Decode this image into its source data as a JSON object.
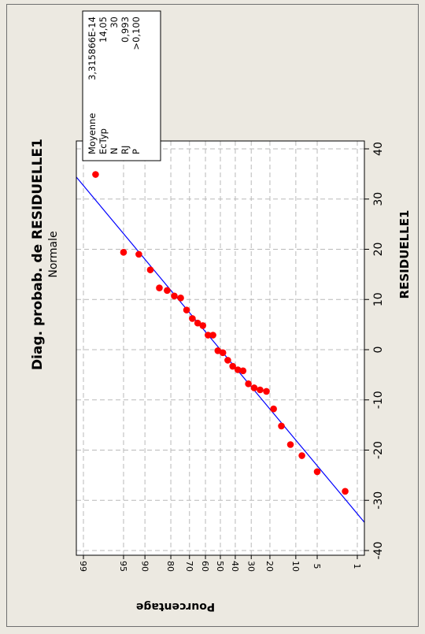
{
  "chart_data": {
    "type": "scatter",
    "title": "Diag. probab. de RESIDUELLE1",
    "subtitle": "Normale",
    "xlabel": "RESIDUELLE1",
    "ylabel": "Pourcentage",
    "x_ticks": [
      "-40",
      "-30",
      "-20",
      "-10",
      "0",
      "10",
      "20",
      "30",
      "40"
    ],
    "xlim": [
      -40,
      40
    ],
    "y_scale": "normal-probability",
    "y_ticks": [
      "1",
      "5",
      "10",
      "20",
      "30",
      "40",
      "50",
      "60",
      "70",
      "80",
      "90",
      "95",
      "99"
    ],
    "ylim": [
      1,
      99
    ],
    "grid": true,
    "fit_line": {
      "mean": 0,
      "stdev": 14.05,
      "color": "#0000ff"
    },
    "point_color": "#ff0000",
    "points": [
      {
        "x": -28.2,
        "y": 1.7
      },
      {
        "x": -24.3,
        "y": 5.0
      },
      {
        "x": -21.1,
        "y": 8.3
      },
      {
        "x": -18.9,
        "y": 11.7
      },
      {
        "x": -15.2,
        "y": 15.0
      },
      {
        "x": -11.8,
        "y": 18.3
      },
      {
        "x": -8.3,
        "y": 21.7
      },
      {
        "x": -8.0,
        "y": 25.0
      },
      {
        "x": -7.6,
        "y": 28.3
      },
      {
        "x": -6.8,
        "y": 31.7
      },
      {
        "x": -4.2,
        "y": 35.0
      },
      {
        "x": -4.0,
        "y": 38.3
      },
      {
        "x": -3.3,
        "y": 41.7
      },
      {
        "x": -2.1,
        "y": 45.0
      },
      {
        "x": -0.6,
        "y": 48.3
      },
      {
        "x": -0.2,
        "y": 51.7
      },
      {
        "x": 2.9,
        "y": 55.0
      },
      {
        "x": 2.9,
        "y": 58.3
      },
      {
        "x": 4.8,
        "y": 61.7
      },
      {
        "x": 5.3,
        "y": 65.0
      },
      {
        "x": 6.2,
        "y": 68.3
      },
      {
        "x": 7.9,
        "y": 71.7
      },
      {
        "x": 10.3,
        "y": 75.0
      },
      {
        "x": 10.7,
        "y": 78.3
      },
      {
        "x": 11.8,
        "y": 81.7
      },
      {
        "x": 12.3,
        "y": 85.0
      },
      {
        "x": 15.9,
        "y": 88.3
      },
      {
        "x": 19.0,
        "y": 91.7
      },
      {
        "x": 19.4,
        "y": 95.0
      },
      {
        "x": 34.9,
        "y": 98.3
      }
    ]
  },
  "stats": {
    "labels": [
      "Moyenne",
      "EcTyp",
      "N",
      "RJ",
      "P"
    ],
    "values": [
      "3,315866E-14",
      "14,05",
      "30",
      "0,993",
      ">0,100"
    ]
  }
}
